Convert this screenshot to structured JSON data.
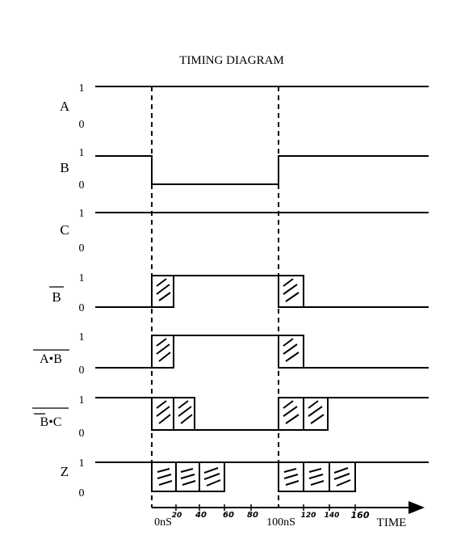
{
  "title": "TIMING DIAGRAM",
  "signals": [
    {
      "label": "A",
      "overbar": "none",
      "high": "1",
      "low": "0"
    },
    {
      "label": "B",
      "overbar": "none",
      "high": "1",
      "low": "0"
    },
    {
      "label": "C",
      "overbar": "none",
      "high": "1",
      "low": "0"
    },
    {
      "label": "B",
      "overbar": "full",
      "high": "1",
      "low": "0"
    },
    {
      "label": "A•B",
      "overbar": "full",
      "high": "1",
      "low": "0"
    },
    {
      "label": "B•C",
      "overbar": "double",
      "high": "1",
      "low": "0"
    }
  ],
  "output": {
    "label": "Z",
    "high": "1",
    "low": "0"
  },
  "time_axis": {
    "label": "TIME",
    "marks": [
      "0nS",
      "100nS"
    ],
    "handwritten_ticks": [
      "20",
      "40",
      "60",
      "80",
      "120",
      "140",
      "160"
    ]
  }
}
